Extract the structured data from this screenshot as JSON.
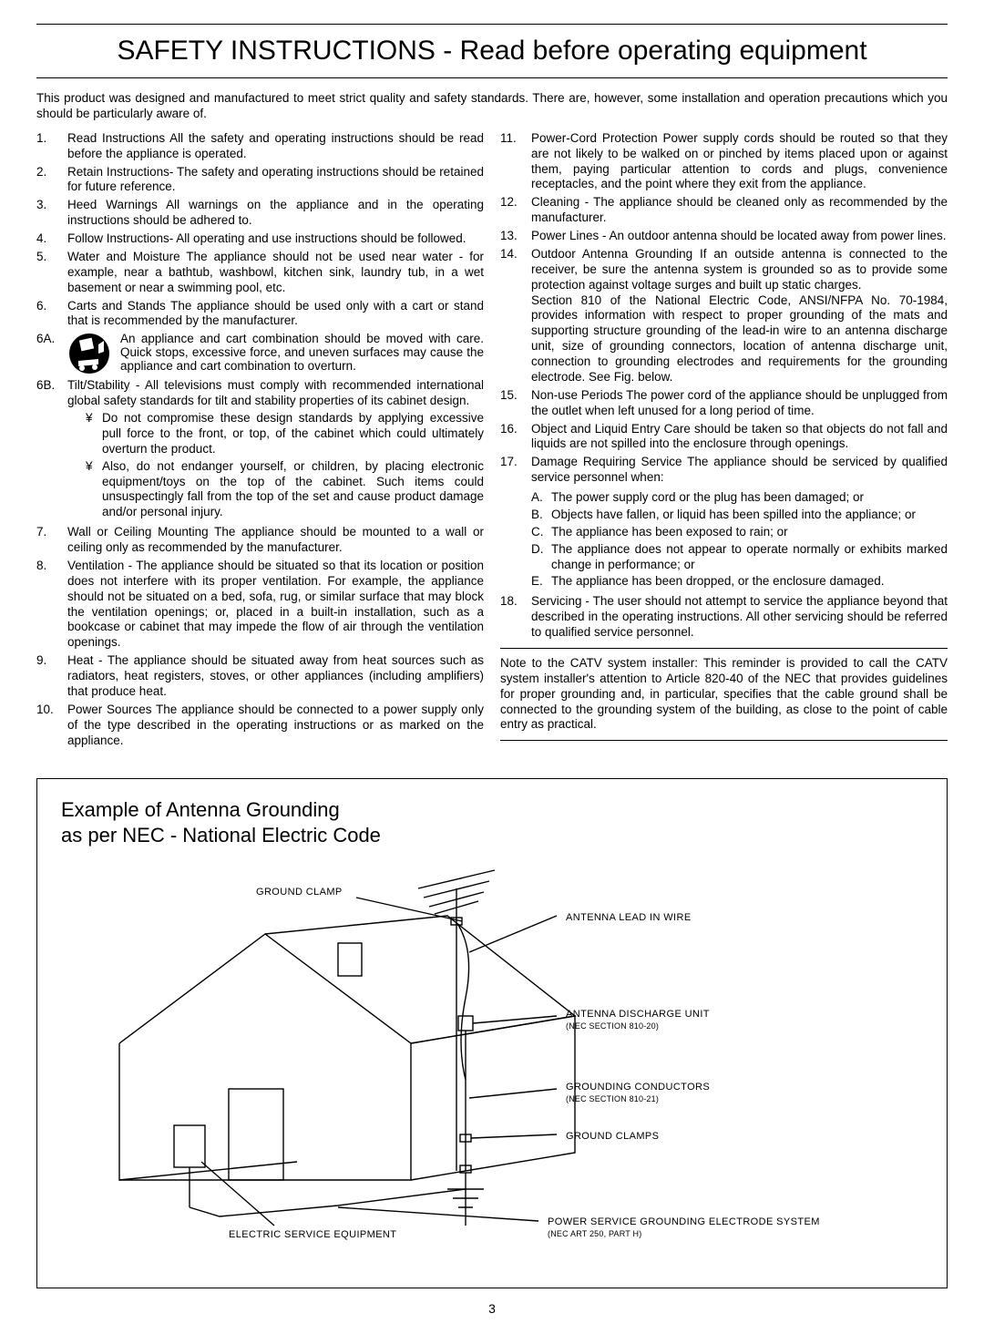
{
  "title": "SAFETY INSTRUCTIONS - Read before operating equipment",
  "intro": "This product was designed and manufactured to meet strict quality and safety standards. There are, however, some installation and operation precautions which you should be particularly aware of.",
  "left": [
    {
      "n": "1.",
      "t": "<span class='term'>Read Instructions</span> All the safety and operating instructions should be read before the appliance is operated."
    },
    {
      "n": "2.",
      "t": "<span class='term'>Retain Instructions-</span> The safety and operating instructions should be retained for future reference."
    },
    {
      "n": "3.",
      "t": "<span class='term'>Heed Warnings</span> All warnings on the appliance and in the operating instructions should be adhered to."
    },
    {
      "n": "4.",
      "t": "<span class='term'>Follow Instructions-</span> All operating and use instructions should be followed."
    },
    {
      "n": "5.",
      "t": "<span class='term'>Water and Moisture</span> The appliance should not be used near water - for example, near a bathtub, washbowl, kitchen sink, laundry tub, in a wet basement or near a swimming pool, etc."
    },
    {
      "n": "6.",
      "t": "<span class='term'>Carts and Stands</span> The appliance should be used only with a cart or stand that is recommended by the manufacturer."
    }
  ],
  "sixA": "An appliance and cart combination should be moved with care. Quick stops, excessive force, and uneven surfaces may cause the appliance and cart combination to overturn.",
  "sixB": "<span class='term'>Tilt/Stability</span> - All televisions must comply with recommended international global safety standards for tilt and stability properties of its cabinet design.",
  "sixB_bullets": [
    "Do not compromise these design standards by applying excessive pull force to the front, or top, of the cabinet which could ultimately overturn the product.",
    "Also, do not endanger yourself, or children, by placing electronic equipment/toys on the top of the cabinet. Such items could unsuspectingly fall from the top of the set and cause product damage and/or personal injury."
  ],
  "left2": [
    {
      "n": "7.",
      "t": "<span class='term'>Wall or Ceiling Mounting</span> The appliance should be mounted to a wall or ceiling only as recommended by the manufacturer."
    },
    {
      "n": "8.",
      "t": "<span class='term'>Ventilation</span> - The appliance should be situated so that its location or position does not interfere with its proper ventilation. For example, the appliance should not be situated on a bed, sofa, rug, or similar surface that may block the ventilation openings; or, placed in a built-in installation, such as a bookcase or cabinet that may impede the flow of air through the ventilation openings."
    },
    {
      "n": "9.",
      "t": "<span class='term'>Heat</span> - The appliance should be situated away from heat sources such as radiators, heat registers, stoves, or other appliances (including amplifiers) that produce heat."
    },
    {
      "n": "10.",
      "t": "<span class='term'>Power Sources</span> The appliance should be connected to a power supply only of the type described in the operating instructions or as marked on the appliance."
    }
  ],
  "right": [
    {
      "n": "11.",
      "t": "<span class='term'>Power-Cord Protection</span> Power supply cords should be routed so that they are not likely to be walked on or pinched by items placed upon or against them, paying particular attention to cords and plugs, convenience receptacles, and the point where they exit from the appliance."
    },
    {
      "n": "12.",
      "t": "<span class='term'>Cleaning</span> - The appliance should be cleaned only as recommended by the manufacturer."
    },
    {
      "n": "13.",
      "t": "<span class='term'>Power Lines</span> - An outdoor antenna should be located away from power lines."
    },
    {
      "n": "14.",
      "t": "<span class='term'>Outdoor Antenna Grounding</span> If an outside antenna is connected to the receiver, be sure the antenna system is grounded so as to provide some protection against voltage surges and built up static charges.<br>Section 810 of the National Electric Code, ANSI/NFPA No. 70-1984, provides information with respect to proper grounding of the mats and supporting structure grounding of the lead-in wire to an antenna discharge unit, size of grounding connectors, location of antenna discharge unit, connection to grounding electrodes and requirements for the grounding electrode. See Fig. below."
    },
    {
      "n": "15.",
      "t": "<span class='term'>Non-use Periods</span> The power cord of the appliance should be unplugged from the outlet when left unused for a long period of time."
    },
    {
      "n": "16.",
      "t": "<span class='term'>Object and Liquid Entry</span> Care should be taken so that objects do not fall and liquids are not spilled into the enclosure through openings."
    },
    {
      "n": "17.",
      "t": "<span class='term'>Damage Requiring Service</span> The appliance should be serviced by qualified service personnel when:"
    }
  ],
  "seventeen_sub": [
    {
      "l": "A.",
      "t": "The power supply cord or the plug has been damaged; or"
    },
    {
      "l": "B.",
      "t": "Objects have fallen, or liquid has been spilled into the appliance; or"
    },
    {
      "l": "C.",
      "t": "The appliance has been exposed to rain; or"
    },
    {
      "l": "D.",
      "t": "The appliance does not appear to operate normally or exhibits marked change in performance; or"
    },
    {
      "l": "E.",
      "t": "The appliance has been dropped, or the enclosure damaged."
    }
  ],
  "right2": [
    {
      "n": "18.",
      "t": "<span class='term'>Servicing</span> - The user should not attempt to service the appliance beyond that described in the operating instructions. All other servicing should be referred to qualified service personnel."
    }
  ],
  "note": "Note to the CATV system installer: This reminder is provided to call the CATV system installer's attention to Article 820-40 of the NEC that provides guidelines for proper grounding and, in particular, specifies that the cable ground shall be connected to the grounding system of the building, as close to the point of cable entry as practical.",
  "diagram": {
    "title_l1": "Example of Antenna Grounding",
    "title_l2": "as per NEC - National Electric Code",
    "labels": {
      "ground_clamp_top": "GROUND CLAMP",
      "antenna_lead": "ANTENNA LEAD IN WIRE",
      "discharge": "ANTENNA DISCHARGE UNIT",
      "discharge_sub": "(NEC SECTION 810-20)",
      "conductors": "GROUNDING CONDUCTORS",
      "conductors_sub": "(NEC SECTION 810-21)",
      "ground_clamps": "GROUND CLAMPS",
      "electric_service": "ELECTRIC SERVICE EQUIPMENT",
      "power_service": "POWER SERVICE GROUNDING ELECTRODE SYSTEM",
      "power_service_sub": "(NEC ART 250, PART H)"
    }
  },
  "page": "3"
}
